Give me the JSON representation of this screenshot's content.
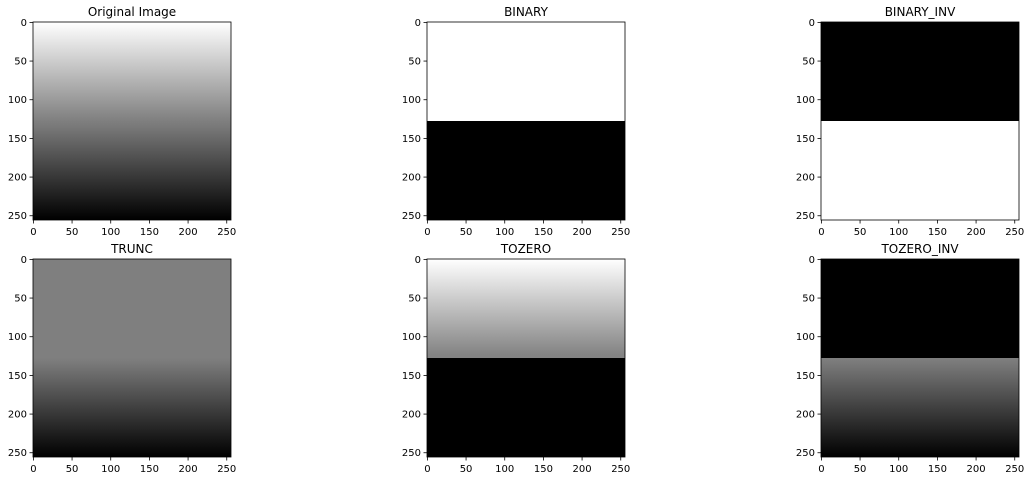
{
  "chart_data": [
    {
      "type": "heatmap",
      "title": "Original Image",
      "image_size": [
        256,
        256
      ],
      "colormap": "gray",
      "profile": "linear_gradient",
      "threshold": 127,
      "max_value": 255,
      "x_ticks": [
        0,
        50,
        100,
        150,
        200,
        250
      ],
      "y_ticks": [
        0,
        50,
        100,
        150,
        200,
        250
      ]
    },
    {
      "type": "heatmap",
      "title": "BINARY",
      "image_size": [
        256,
        256
      ],
      "colormap": "gray",
      "profile": "binary",
      "threshold": 127,
      "max_value": 255,
      "x_ticks": [
        0,
        50,
        100,
        150,
        200,
        250
      ],
      "y_ticks": [
        0,
        50,
        100,
        150,
        200,
        250
      ]
    },
    {
      "type": "heatmap",
      "title": "BINARY_INV",
      "image_size": [
        256,
        256
      ],
      "colormap": "gray",
      "profile": "binary_inv",
      "threshold": 127,
      "max_value": 255,
      "x_ticks": [
        0,
        50,
        100,
        150,
        200,
        250
      ],
      "y_ticks": [
        0,
        50,
        100,
        150,
        200,
        250
      ]
    },
    {
      "type": "heatmap",
      "title": "TRUNC",
      "image_size": [
        256,
        256
      ],
      "colormap": "gray",
      "profile": "trunc",
      "threshold": 127,
      "max_value": 255,
      "x_ticks": [
        0,
        50,
        100,
        150,
        200,
        250
      ],
      "y_ticks": [
        0,
        50,
        100,
        150,
        200,
        250
      ]
    },
    {
      "type": "heatmap",
      "title": "TOZERO",
      "image_size": [
        256,
        256
      ],
      "colormap": "gray",
      "profile": "tozero",
      "threshold": 127,
      "max_value": 255,
      "x_ticks": [
        0,
        50,
        100,
        150,
        200,
        250
      ],
      "y_ticks": [
        0,
        50,
        100,
        150,
        200,
        250
      ]
    },
    {
      "type": "heatmap",
      "title": "TOZERO_INV",
      "image_size": [
        256,
        256
      ],
      "colormap": "gray",
      "profile": "tozero_inv",
      "threshold": 127,
      "max_value": 255,
      "x_ticks": [
        0,
        50,
        100,
        150,
        200,
        250
      ],
      "y_ticks": [
        0,
        50,
        100,
        150,
        200,
        250
      ]
    }
  ]
}
